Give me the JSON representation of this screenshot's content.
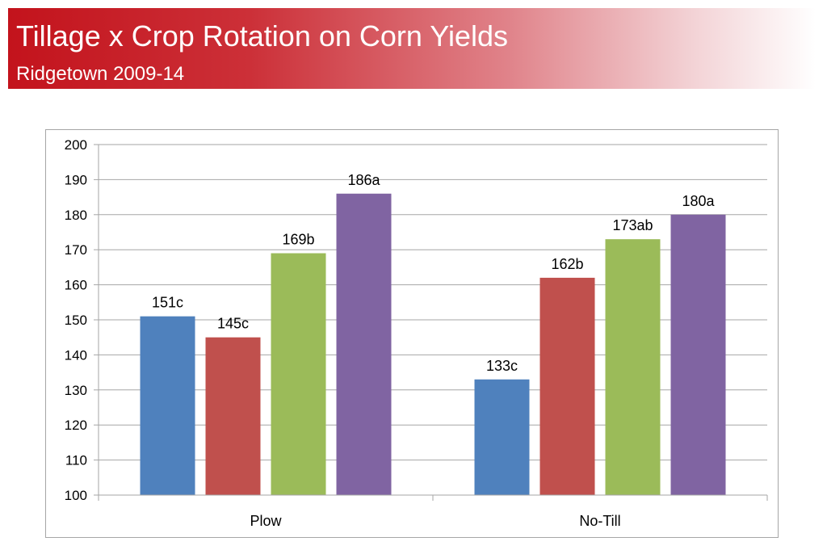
{
  "header": {
    "title": "Tillage x Crop Rotation on Corn Yields",
    "subtitle": "Ridgetown 2009-14"
  },
  "colors": {
    "banner_red": "#c3131c",
    "series": [
      "#4f81bd",
      "#c0504d",
      "#9bbb59",
      "#8064a2"
    ],
    "grid": "#a6a6a6"
  },
  "chart_data": {
    "type": "bar",
    "categories": [
      "Plow",
      "No-Till"
    ],
    "series": [
      {
        "values": [
          151,
          133
        ],
        "labels": [
          "151c",
          "133c"
        ]
      },
      {
        "values": [
          145,
          162
        ],
        "labels": [
          "145c",
          "162b"
        ]
      },
      {
        "values": [
          169,
          173
        ],
        "labels": [
          "169b",
          "173ab"
        ]
      },
      {
        "values": [
          186,
          180
        ],
        "labels": [
          "186a",
          "180a"
        ]
      }
    ],
    "ylim": [
      100,
      200
    ],
    "yticks": [
      100,
      110,
      120,
      130,
      140,
      150,
      160,
      170,
      180,
      190,
      200
    ],
    "grid": true,
    "legend": "none"
  }
}
